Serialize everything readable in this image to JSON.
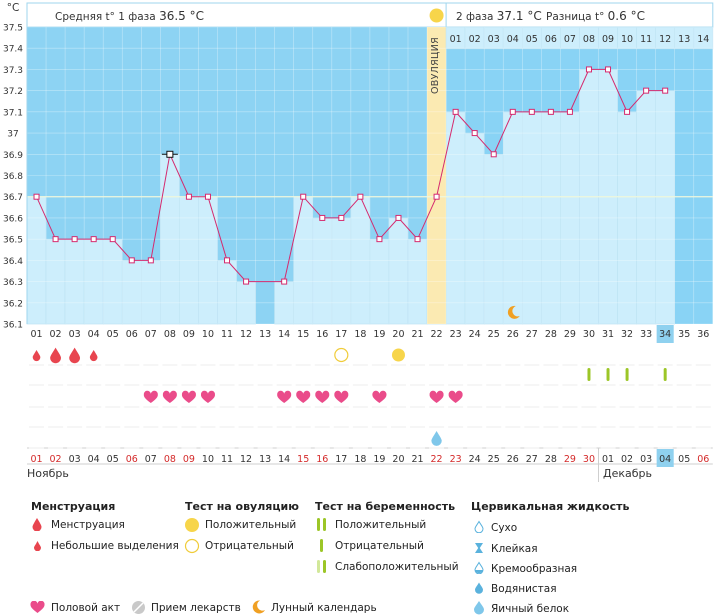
{
  "chart_data": {
    "type": "bar",
    "title": "",
    "ylabel": "°C",
    "ylim": [
      36.1,
      37.5
    ],
    "yticks": [
      "36.1",
      "36.2",
      "36.3",
      "36.4",
      "36.5",
      "36.6",
      "36.7",
      "36.8",
      "36.9",
      "37",
      "37.1",
      "37.2",
      "37.3",
      "37.4",
      "37.5"
    ],
    "cycle_days": [
      "01",
      "02",
      "03",
      "04",
      "05",
      "06",
      "07",
      "08",
      "09",
      "10",
      "11",
      "12",
      "13",
      "14",
      "15",
      "16",
      "17",
      "18",
      "19",
      "20",
      "21",
      "22",
      "23",
      "24",
      "25",
      "26",
      "27",
      "28",
      "29",
      "30",
      "31",
      "32",
      "33",
      "34",
      "35",
      "36"
    ],
    "values": [
      36.7,
      36.5,
      36.5,
      36.5,
      36.5,
      36.4,
      36.4,
      36.9,
      36.7,
      36.7,
      36.4,
      36.3,
      null,
      36.3,
      36.7,
      36.6,
      36.6,
      36.7,
      36.5,
      36.6,
      36.5,
      36.7,
      37.1,
      37.0,
      36.9,
      37.1,
      37.1,
      37.1,
      37.1,
      37.3,
      37.3,
      37.1,
      37.2,
      37.2,
      null,
      null
    ],
    "coverline": 36.7,
    "highlighted_marker_day": "08",
    "ovulation_day": "22",
    "current_day": "34",
    "phase2_days": [
      "01",
      "02",
      "03",
      "04",
      "05",
      "06",
      "07",
      "08",
      "09",
      "10",
      "11",
      "12",
      "13",
      "14"
    ],
    "calendar_days": [
      "01",
      "02",
      "03",
      "04",
      "05",
      "06",
      "07",
      "08",
      "09",
      "10",
      "11",
      "12",
      "13",
      "14",
      "15",
      "16",
      "17",
      "18",
      "19",
      "20",
      "21",
      "22",
      "23",
      "24",
      "25",
      "26",
      "27",
      "28",
      "29",
      "30",
      "01",
      "02",
      "03",
      "04",
      "05",
      "06"
    ],
    "calendar_red_days": [
      "01",
      "02",
      "08",
      "09",
      "15",
      "16",
      "22",
      "23",
      "29",
      "30",
      "06"
    ],
    "months": {
      "first": "Ноябрь",
      "second": "Декабрь"
    },
    "current_calendar_index": 33,
    "rows": {
      "menstruation": [
        {
          "day": "01",
          "kind": "small"
        },
        {
          "day": "02",
          "kind": "large"
        },
        {
          "day": "03",
          "kind": "large"
        },
        {
          "day": "04",
          "kind": "small"
        }
      ],
      "ovulation_test": [
        {
          "day": "17",
          "kind": "negative"
        },
        {
          "day": "20",
          "kind": "positive"
        }
      ],
      "pregnancy_test": [
        {
          "day": "30"
        },
        {
          "day": "31"
        },
        {
          "day": "32"
        },
        {
          "day": "34"
        }
      ],
      "intercourse": [
        "07",
        "08",
        "09",
        "10",
        "14",
        "15",
        "16",
        "17",
        "19",
        "22",
        "23"
      ],
      "cervical_fluid": [
        {
          "day": "22",
          "kind": "egg-white"
        }
      ],
      "moon_day": "26"
    }
  },
  "header": {
    "phase1_label": "Средняя t° 1 фаза",
    "phase1_value": "36.5 °C",
    "phase2_label": "2 фаза",
    "phase2_value": "37.1 °C",
    "diff_label": "Разница t°",
    "diff_value": "0.6 °C",
    "ovulation_label": "ОВУЛЯЦИЯ"
  },
  "legend": {
    "menstruation": {
      "title": "Менструация",
      "items": [
        "Менструация",
        "Небольшие выделения"
      ]
    },
    "ovulation_test": {
      "title": "Тест на овуляцию",
      "items": [
        "Положительный",
        "Отрицательный"
      ]
    },
    "pregnancy_test": {
      "title": "Тест на беременность",
      "items": [
        "Положительный",
        "Отрицательный",
        "Слабоположительный"
      ]
    },
    "cervical_fluid": {
      "title": "Цервикальная жидкость",
      "items": [
        "Сухо",
        "Клейкая",
        "Кремообразная",
        "Водянистая",
        "Яичный белок"
      ]
    },
    "bottom": [
      "Половой акт",
      "Прием лекарств",
      "Лунный календарь"
    ]
  },
  "colors": {
    "phase1_bg": "#8dd3f3",
    "phase2_bg": "#89d3f5",
    "bar": "#cdeefc",
    "bar_edge": "#9fd6ee",
    "line": "#d52a6e",
    "ovulation": "#fbeab2",
    "heart": "#ea4c8a",
    "drop": "#e8454f",
    "yellow": "#f7d54a",
    "green": "#9cc627",
    "current": "#8fd1ef",
    "red_text": "#d42a2a"
  }
}
